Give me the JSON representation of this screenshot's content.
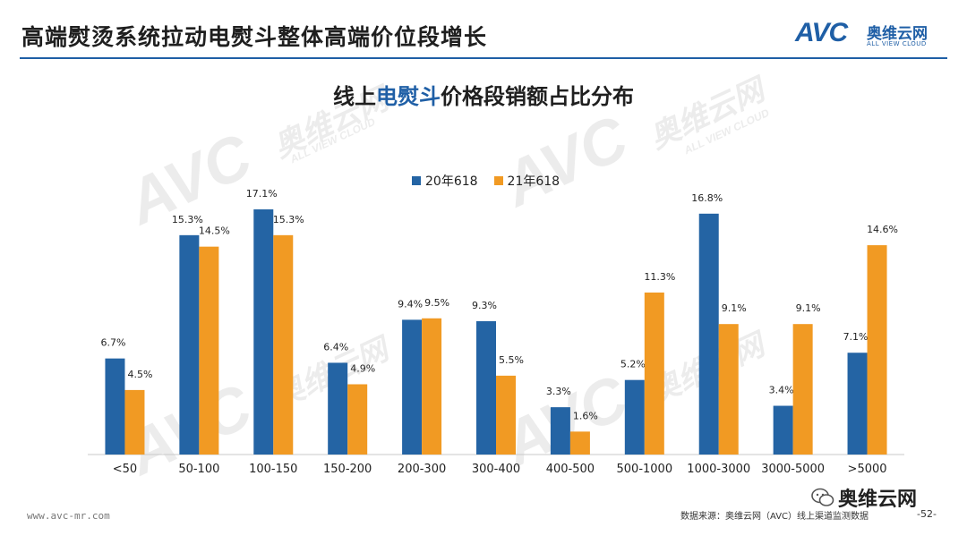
{
  "header": {
    "title": "高端熨烫系统拉动电熨斗整体高端价位段增长",
    "logo_text": "AVC",
    "logo_cn": "奥维云网",
    "logo_en": "ALL VIEW CLOUD"
  },
  "footer": {
    "url": "www.avc-mr.com",
    "source": "数据来源：奥维云网（AVC）线上渠道监测数据",
    "page": "-52-",
    "wechat": "奥维云网"
  },
  "watermark": {
    "text": "AVC",
    "cn": "奥维云网",
    "en": "ALL VIEW CLOUD"
  },
  "colors": {
    "series1": "#2464a4",
    "series2": "#f19a23",
    "accent": "#1f5fa6"
  },
  "chart_data": {
    "type": "bar",
    "title_prefix": "线上",
    "title_highlight": "电熨斗",
    "title_suffix": "价格段销额占比分布",
    "categories": [
      "<50",
      "50-100",
      "100-150",
      "150-200",
      "200-300",
      "300-400",
      "400-500",
      "500-1000",
      "1000-3000",
      "3000-5000",
      ">5000"
    ],
    "series": [
      {
        "name": "20年618",
        "values": [
          6.7,
          15.3,
          17.1,
          6.4,
          9.4,
          9.3,
          3.3,
          5.2,
          16.8,
          3.4,
          7.1
        ],
        "labels": [
          "6.7%",
          "15.3%",
          "17.1%",
          "6.4%",
          "9.4%",
          "9.3%",
          "3.3%",
          "5.2%",
          "16.8%",
          "3.4%",
          "7.1%"
        ]
      },
      {
        "name": "21年618",
        "values": [
          4.5,
          14.5,
          15.3,
          4.9,
          9.5,
          5.5,
          1.6,
          11.3,
          9.1,
          9.1,
          14.6
        ],
        "labels": [
          "4.5%",
          "14.5%",
          "15.3%",
          "4.9%",
          "9.5%",
          "5.5%",
          "1.6%",
          "11.3%",
          "9.1%",
          "9.1%",
          "14.6%"
        ]
      }
    ],
    "ylim": [
      0,
      18
    ],
    "xlabel": "",
    "ylabel": "",
    "grid": false,
    "legend_position": "top-center"
  }
}
